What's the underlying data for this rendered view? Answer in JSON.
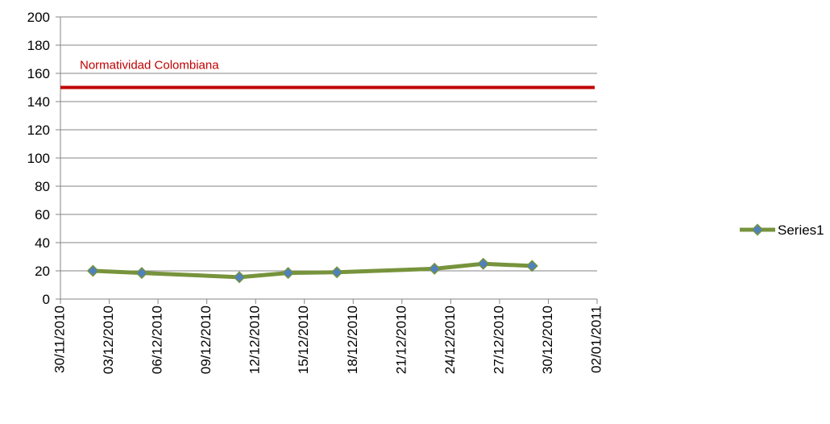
{
  "chart_data": {
    "type": "line",
    "title": "",
    "xlabel": "",
    "ylabel": "",
    "ylim": [
      0,
      200
    ],
    "y_ticks": [
      0,
      20,
      40,
      60,
      80,
      100,
      120,
      140,
      160,
      180,
      200
    ],
    "xlim": [
      "30/11/2010",
      "02/01/2011"
    ],
    "x_tick_labels": [
      "30/11/2010",
      "03/12/2010",
      "06/12/2010",
      "09/12/2010",
      "12/12/2010",
      "15/12/2010",
      "18/12/2010",
      "21/12/2010",
      "24/12/2010",
      "27/12/2010",
      "30/12/2010",
      "02/01/2011"
    ],
    "grid": "horizontal",
    "legend_position": "right",
    "series": [
      {
        "name": "Series1",
        "color": "#77933C",
        "marker_color": "#4F81BD",
        "points": [
          {
            "x": "02/12/2010",
            "y": 20
          },
          {
            "x": "05/12/2010",
            "y": 18.5
          },
          {
            "x": "11/12/2010",
            "y": 15.5
          },
          {
            "x": "14/12/2010",
            "y": 18.5
          },
          {
            "x": "17/12/2010",
            "y": 19
          },
          {
            "x": "23/12/2010",
            "y": 21.5
          },
          {
            "x": "26/12/2010",
            "y": 25
          },
          {
            "x": "29/12/2010",
            "y": 23.5
          }
        ]
      }
    ],
    "reference_line": {
      "label": "Normatividad Colombiana",
      "value": 150,
      "color": "#C00000"
    }
  }
}
